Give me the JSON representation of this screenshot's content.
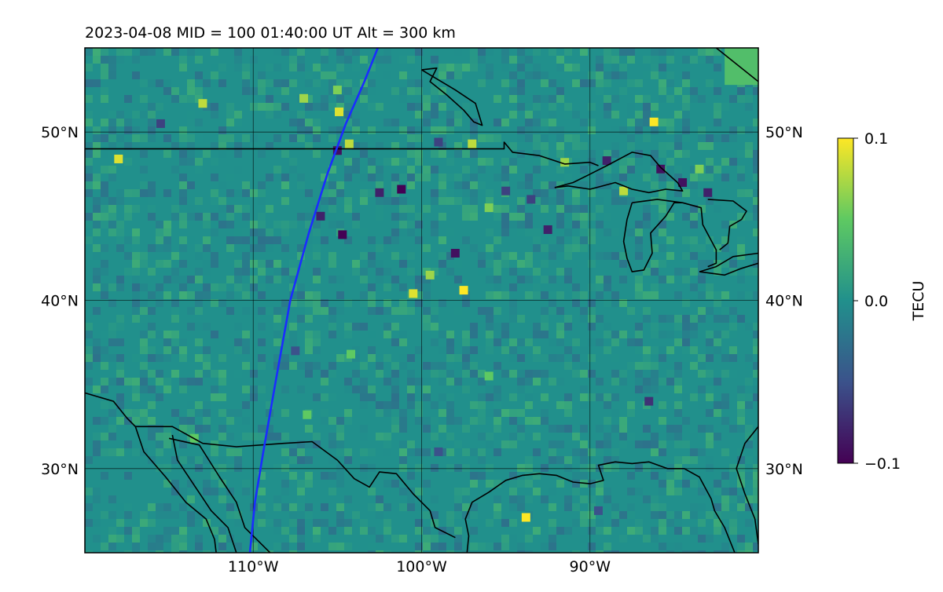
{
  "title": "2023-04-08  MID = 100    01:40:00  UT  Alt = 300 km",
  "map": {
    "lon_range": [
      -120,
      -80
    ],
    "lat_range": [
      25,
      55
    ],
    "lat_ticks": [
      {
        "value": 50,
        "label": "50°N"
      },
      {
        "value": 40,
        "label": "40°N"
      },
      {
        "value": 30,
        "label": "30°N"
      }
    ],
    "lon_ticks": [
      {
        "value": -110,
        "label": "110°W"
      },
      {
        "value": -100,
        "label": "100°W"
      },
      {
        "value": -90,
        "label": "90°W"
      }
    ],
    "grid": true,
    "background_color": "#21908c",
    "coastline_color": "#000000",
    "track_color": "#1a2cff"
  },
  "colorbar": {
    "label": "TECU",
    "vmin": -0.1,
    "vmax": 0.1,
    "tick_labels": [
      {
        "value": 0.1,
        "label": "0.1"
      },
      {
        "value": 0.0,
        "label": "0.0"
      },
      {
        "value": -0.1,
        "label": "−0.1"
      }
    ],
    "colormap": "viridis",
    "colors": [
      "#440154",
      "#3b528b",
      "#21908c",
      "#5ec962",
      "#fde725"
    ]
  },
  "satellite_track": {
    "points": [
      [
        -110.2,
        25.0
      ],
      [
        -109.9,
        28.0
      ],
      [
        -109.4,
        31.0
      ],
      [
        -108.7,
        35.0
      ],
      [
        -107.8,
        40.0
      ],
      [
        -106.7,
        44.0
      ],
      [
        -105.6,
        47.5
      ],
      [
        -104.5,
        50.5
      ],
      [
        -103.4,
        53.0
      ],
      [
        -102.6,
        55.0
      ]
    ]
  },
  "tec_anomalies": [
    {
      "lon": -113.0,
      "lat": 51.7,
      "value": 0.08
    },
    {
      "lon": -107.0,
      "lat": 52.0,
      "value": 0.07
    },
    {
      "lon": -105.0,
      "lat": 52.5,
      "value": 0.06
    },
    {
      "lon": -104.9,
      "lat": 51.2,
      "value": 0.09
    },
    {
      "lon": -104.3,
      "lat": 49.3,
      "value": 0.08
    },
    {
      "lon": -118.0,
      "lat": 48.4,
      "value": 0.09
    },
    {
      "lon": -97.0,
      "lat": 49.3,
      "value": 0.08
    },
    {
      "lon": -91.5,
      "lat": 48.2,
      "value": 0.07
    },
    {
      "lon": -86.2,
      "lat": 50.6,
      "value": 0.1
    },
    {
      "lon": -83.5,
      "lat": 47.8,
      "value": 0.06
    },
    {
      "lon": -88.0,
      "lat": 46.5,
      "value": 0.08
    },
    {
      "lon": -99.5,
      "lat": 41.5,
      "value": 0.07
    },
    {
      "lon": -100.5,
      "lat": 40.4,
      "value": 0.09
    },
    {
      "lon": -97.5,
      "lat": 40.6,
      "value": 0.1
    },
    {
      "lon": -96.0,
      "lat": 45.5,
      "value": 0.06
    },
    {
      "lon": -93.8,
      "lat": 27.1,
      "value": 0.1
    },
    {
      "lon": -104.2,
      "lat": 36.8,
      "value": 0.05
    },
    {
      "lon": -96.0,
      "lat": 35.5,
      "value": 0.05
    },
    {
      "lon": -106.8,
      "lat": 33.2,
      "value": 0.05
    },
    {
      "lon": -113.5,
      "lat": 31.8,
      "value": 0.05
    },
    {
      "lon": -105.0,
      "lat": 48.9,
      "value": -0.09
    },
    {
      "lon": -101.2,
      "lat": 46.6,
      "value": -0.1
    },
    {
      "lon": -102.5,
      "lat": 46.4,
      "value": -0.08
    },
    {
      "lon": -104.7,
      "lat": 43.9,
      "value": -0.1
    },
    {
      "lon": -106.0,
      "lat": 45.0,
      "value": -0.08
    },
    {
      "lon": -98.0,
      "lat": 42.8,
      "value": -0.09
    },
    {
      "lon": -95.0,
      "lat": 46.5,
      "value": -0.06
    },
    {
      "lon": -92.5,
      "lat": 44.2,
      "value": -0.08
    },
    {
      "lon": -85.8,
      "lat": 47.8,
      "value": -0.09
    },
    {
      "lon": -84.5,
      "lat": 47.0,
      "value": -0.09
    },
    {
      "lon": -83.0,
      "lat": 46.4,
      "value": -0.08
    },
    {
      "lon": -89.0,
      "lat": 48.3,
      "value": -0.08
    },
    {
      "lon": -93.5,
      "lat": 46.0,
      "value": -0.06
    },
    {
      "lon": -107.5,
      "lat": 37.0,
      "value": -0.05
    },
    {
      "lon": -86.5,
      "lat": 34.0,
      "value": -0.07
    },
    {
      "lon": -99.0,
      "lat": 31.0,
      "value": -0.05
    },
    {
      "lon": -89.5,
      "lat": 27.5,
      "value": -0.05
    },
    {
      "lon": -115.5,
      "lat": 50.5,
      "value": -0.06
    },
    {
      "lon": -99.0,
      "lat": 49.4,
      "value": -0.06
    }
  ],
  "coastlines": [
    [
      [
        -120,
        34.5
      ],
      [
        -118.3,
        34.0
      ],
      [
        -117.5,
        33.0
      ],
      [
        -117.0,
        32.5
      ],
      [
        -116.5,
        31.0
      ],
      [
        -115.2,
        29.5
      ],
      [
        -114.0,
        28.0
      ],
      [
        -112.8,
        27.0
      ],
      [
        -112.3,
        25.8
      ],
      [
        -112.2,
        25.0
      ]
    ],
    [
      [
        -117.0,
        32.5
      ],
      [
        -114.8,
        32.5
      ],
      [
        -113.0,
        31.5
      ],
      [
        -111.0,
        31.3
      ],
      [
        -108.2,
        31.5
      ],
      [
        -106.5,
        31.6
      ],
      [
        -105.0,
        30.5
      ],
      [
        -104.0,
        29.4
      ],
      [
        -103.1,
        28.9
      ],
      [
        -102.5,
        29.8
      ],
      [
        -101.5,
        29.7
      ],
      [
        -100.5,
        28.5
      ],
      [
        -99.5,
        27.5
      ],
      [
        -99.2,
        26.5
      ],
      [
        -98.0,
        25.9
      ]
    ],
    [
      [
        -114.8,
        32.0
      ],
      [
        -114.5,
        30.5
      ],
      [
        -113.5,
        29.0
      ],
      [
        -112.5,
        27.5
      ],
      [
        -111.5,
        26.5
      ],
      [
        -111.0,
        25.0
      ]
    ],
    [
      [
        -115.0,
        31.8
      ],
      [
        -113.2,
        31.4
      ],
      [
        -112.0,
        29.5
      ],
      [
        -111.0,
        28.0
      ],
      [
        -110.5,
        26.5
      ],
      [
        -109.5,
        25.5
      ],
      [
        -109.0,
        25.0
      ]
    ],
    [
      [
        -97.3,
        25.0
      ],
      [
        -97.2,
        26.0
      ],
      [
        -97.4,
        27.0
      ],
      [
        -97.0,
        28.0
      ],
      [
        -96.0,
        28.6
      ],
      [
        -95.0,
        29.3
      ],
      [
        -94.0,
        29.6
      ],
      [
        -93.0,
        29.7
      ],
      [
        -92.0,
        29.6
      ],
      [
        -91.0,
        29.2
      ],
      [
        -90.0,
        29.1
      ],
      [
        -89.2,
        29.3
      ],
      [
        -89.5,
        30.2
      ],
      [
        -88.5,
        30.4
      ],
      [
        -87.5,
        30.3
      ],
      [
        -86.5,
        30.4
      ],
      [
        -85.4,
        30.0
      ],
      [
        -84.4,
        30.0
      ],
      [
        -83.5,
        29.5
      ],
      [
        -82.8,
        28.2
      ],
      [
        -82.6,
        27.5
      ],
      [
        -82.0,
        26.5
      ],
      [
        -81.4,
        25.0
      ]
    ],
    [
      [
        -80.0,
        32.5
      ],
      [
        -80.8,
        31.5
      ],
      [
        -81.3,
        30.0
      ],
      [
        -80.8,
        28.5
      ],
      [
        -80.2,
        27.0
      ],
      [
        -80.0,
        25.5
      ]
    ],
    [
      [
        -80.0,
        53.0
      ],
      [
        -82.5,
        55.0
      ]
    ],
    [
      [
        -120,
        49.0
      ],
      [
        -95.1,
        49.0
      ],
      [
        -95.1,
        49.4
      ],
      [
        -94.6,
        48.8
      ],
      [
        -93.0,
        48.6
      ],
      [
        -91.5,
        48.1
      ],
      [
        -90.0,
        48.2
      ],
      [
        -89.5,
        48.0
      ]
    ],
    [
      [
        -92.1,
        46.7
      ],
      [
        -91.0,
        47.0
      ],
      [
        -90.0,
        47.5
      ],
      [
        -89.0,
        48.0
      ],
      [
        -87.5,
        48.8
      ],
      [
        -86.4,
        48.6
      ],
      [
        -85.8,
        47.9
      ],
      [
        -84.8,
        47.0
      ],
      [
        -84.5,
        46.5
      ],
      [
        -85.5,
        46.6
      ],
      [
        -86.5,
        46.4
      ],
      [
        -87.5,
        46.6
      ],
      [
        -88.5,
        47.0
      ],
      [
        -90.0,
        46.6
      ],
      [
        -91.3,
        46.8
      ],
      [
        -92.1,
        46.7
      ]
    ],
    [
      [
        -87.5,
        45.8
      ],
      [
        -87.8,
        44.8
      ],
      [
        -88.0,
        43.5
      ],
      [
        -87.8,
        42.5
      ],
      [
        -87.5,
        41.7
      ],
      [
        -86.8,
        41.8
      ],
      [
        -86.3,
        42.8
      ],
      [
        -86.4,
        44.0
      ],
      [
        -85.5,
        45.0
      ],
      [
        -85.0,
        45.8
      ],
      [
        -84.5,
        45.8
      ],
      [
        -86.0,
        46.0
      ],
      [
        -87.5,
        45.8
      ]
    ],
    [
      [
        -84.5,
        45.8
      ],
      [
        -83.4,
        45.5
      ],
      [
        -83.3,
        44.5
      ],
      [
        -82.5,
        43.0
      ],
      [
        -82.5,
        42.2
      ],
      [
        -83.0,
        42.0
      ]
    ],
    [
      [
        -83.0,
        46.0
      ],
      [
        -81.5,
        45.9
      ],
      [
        -80.7,
        45.3
      ],
      [
        -81.0,
        44.8
      ],
      [
        -81.7,
        44.4
      ],
      [
        -81.8,
        43.4
      ],
      [
        -82.3,
        43.0
      ]
    ],
    [
      [
        -83.5,
        41.7
      ],
      [
        -82.0,
        41.5
      ],
      [
        -81.0,
        41.9
      ],
      [
        -80.0,
        42.2
      ]
    ],
    [
      [
        -83.5,
        41.7
      ],
      [
        -82.5,
        42.0
      ],
      [
        -81.5,
        42.6
      ],
      [
        -80.0,
        42.8
      ]
    ],
    [
      [
        -100.0,
        53.7
      ],
      [
        -99.1,
        53.8
      ],
      [
        -99.5,
        53.0
      ],
      [
        -98.5,
        52.2
      ],
      [
        -97.5,
        51.3
      ],
      [
        -96.9,
        50.6
      ],
      [
        -96.4,
        50.4
      ],
      [
        -96.8,
        51.7
      ],
      [
        -98.0,
        52.5
      ],
      [
        -99.5,
        53.4
      ],
      [
        -100.0,
        53.7
      ]
    ]
  ]
}
